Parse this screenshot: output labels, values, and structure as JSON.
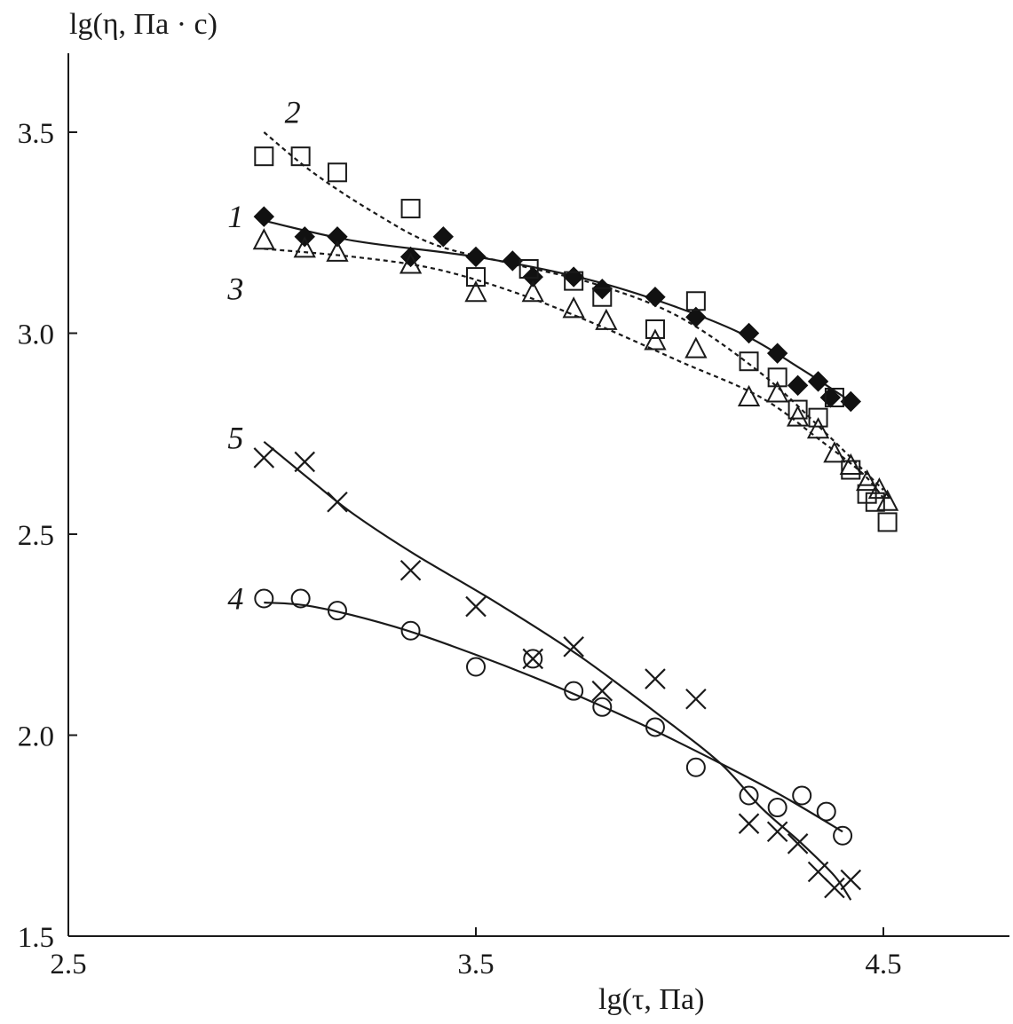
{
  "chart_data": {
    "type": "scatter",
    "title": "",
    "xlabel": "lg(τ, Па)",
    "ylabel": "lg(η, Па · с)",
    "xlim": [
      2.5,
      4.8
    ],
    "ylim": [
      1.5,
      3.7
    ],
    "xticks": [
      2.5,
      3.5,
      4.5
    ],
    "xtick_labels": [
      "2.5",
      "3.5",
      "4.5"
    ],
    "yticks": [
      1.5,
      2.0,
      2.5,
      3.0,
      3.5
    ],
    "ytick_labels": [
      "1.5",
      "2.0",
      "2.5",
      "3.0",
      "3.5"
    ],
    "grid": false,
    "legend": "none",
    "series": [
      {
        "label": "1",
        "marker": "filled-diamond",
        "line": "solid",
        "label_pos": [
          2.93,
          3.29
        ],
        "points": [
          [
            2.98,
            3.29
          ],
          [
            3.08,
            3.24
          ],
          [
            3.16,
            3.24
          ],
          [
            3.34,
            3.19
          ],
          [
            3.42,
            3.24
          ],
          [
            3.5,
            3.19
          ],
          [
            3.59,
            3.18
          ],
          [
            3.64,
            3.14
          ],
          [
            3.74,
            3.14
          ],
          [
            3.81,
            3.11
          ],
          [
            3.94,
            3.09
          ],
          [
            4.04,
            3.04
          ],
          [
            4.17,
            3.0
          ],
          [
            4.24,
            2.95
          ],
          [
            4.29,
            2.87
          ],
          [
            4.34,
            2.88
          ],
          [
            4.37,
            2.84
          ],
          [
            4.42,
            2.83
          ]
        ],
        "fit": [
          [
            2.98,
            3.28
          ],
          [
            3.2,
            3.23
          ],
          [
            3.5,
            3.19
          ],
          [
            3.75,
            3.14
          ],
          [
            3.95,
            3.08
          ],
          [
            4.15,
            3.0
          ],
          [
            4.3,
            2.91
          ],
          [
            4.42,
            2.83
          ]
        ]
      },
      {
        "label": "2",
        "marker": "open-square",
        "line": "dashed",
        "label_pos": [
          3.07,
          3.55
        ],
        "points": [
          [
            2.98,
            3.44
          ],
          [
            3.07,
            3.44
          ],
          [
            3.16,
            3.4
          ],
          [
            3.34,
            3.31
          ],
          [
            3.5,
            3.14
          ],
          [
            3.63,
            3.16
          ],
          [
            3.74,
            3.13
          ],
          [
            3.81,
            3.09
          ],
          [
            3.94,
            3.01
          ],
          [
            4.04,
            3.08
          ],
          [
            4.17,
            2.93
          ],
          [
            4.24,
            2.89
          ],
          [
            4.29,
            2.81
          ],
          [
            4.34,
            2.79
          ],
          [
            4.38,
            2.84
          ],
          [
            4.42,
            2.66
          ],
          [
            4.46,
            2.6
          ],
          [
            4.48,
            2.58
          ],
          [
            4.51,
            2.53
          ]
        ],
        "fit": [
          [
            2.98,
            3.5
          ],
          [
            3.1,
            3.4
          ],
          [
            3.25,
            3.3
          ],
          [
            3.4,
            3.22
          ],
          [
            3.6,
            3.17
          ],
          [
            3.8,
            3.12
          ],
          [
            4.0,
            3.04
          ],
          [
            4.2,
            2.9
          ],
          [
            4.35,
            2.76
          ],
          [
            4.45,
            2.66
          ],
          [
            4.5,
            2.61
          ]
        ]
      },
      {
        "label": "3",
        "marker": "open-triangle",
        "line": "dashed",
        "label_pos": [
          2.93,
          3.11
        ],
        "points": [
          [
            2.98,
            3.23
          ],
          [
            3.08,
            3.21
          ],
          [
            3.16,
            3.2
          ],
          [
            3.34,
            3.17
          ],
          [
            3.5,
            3.1
          ],
          [
            3.64,
            3.1
          ],
          [
            3.74,
            3.06
          ],
          [
            3.82,
            3.03
          ],
          [
            3.94,
            2.98
          ],
          [
            4.04,
            2.96
          ],
          [
            4.17,
            2.84
          ],
          [
            4.24,
            2.85
          ],
          [
            4.29,
            2.79
          ],
          [
            4.34,
            2.76
          ],
          [
            4.38,
            2.7
          ],
          [
            4.42,
            2.67
          ],
          [
            4.46,
            2.63
          ],
          [
            4.49,
            2.61
          ],
          [
            4.51,
            2.58
          ]
        ],
        "fit": [
          [
            2.98,
            3.21
          ],
          [
            3.2,
            3.19
          ],
          [
            3.4,
            3.16
          ],
          [
            3.6,
            3.1
          ],
          [
            3.8,
            3.02
          ],
          [
            4.0,
            2.93
          ],
          [
            4.2,
            2.84
          ],
          [
            4.35,
            2.73
          ],
          [
            4.45,
            2.65
          ],
          [
            4.5,
            2.59
          ]
        ]
      },
      {
        "label": "4",
        "marker": "open-circle",
        "line": "solid",
        "label_pos": [
          2.93,
          2.34
        ],
        "points": [
          [
            2.98,
            2.34
          ],
          [
            3.07,
            2.34
          ],
          [
            3.16,
            2.31
          ],
          [
            3.34,
            2.26
          ],
          [
            3.5,
            2.17
          ],
          [
            3.64,
            2.19
          ],
          [
            3.74,
            2.11
          ],
          [
            3.81,
            2.07
          ],
          [
            3.94,
            2.02
          ],
          [
            4.04,
            1.92
          ],
          [
            4.17,
            1.85
          ],
          [
            4.24,
            1.82
          ],
          [
            4.3,
            1.85
          ],
          [
            4.36,
            1.81
          ],
          [
            4.4,
            1.75
          ]
        ],
        "fit": [
          [
            2.98,
            2.33
          ],
          [
            3.1,
            2.32
          ],
          [
            3.3,
            2.27
          ],
          [
            3.5,
            2.2
          ],
          [
            3.7,
            2.12
          ],
          [
            3.9,
            2.03
          ],
          [
            4.1,
            1.93
          ],
          [
            4.25,
            1.85
          ],
          [
            4.4,
            1.76
          ]
        ]
      },
      {
        "label": "5",
        "marker": "cross",
        "line": "solid",
        "label_pos": [
          2.93,
          2.74
        ],
        "points": [
          [
            2.98,
            2.69
          ],
          [
            3.08,
            2.68
          ],
          [
            3.16,
            2.58
          ],
          [
            3.34,
            2.41
          ],
          [
            3.5,
            2.32
          ],
          [
            3.64,
            2.19
          ],
          [
            3.74,
            2.22
          ],
          [
            3.81,
            2.11
          ],
          [
            3.94,
            2.14
          ],
          [
            4.04,
            2.09
          ],
          [
            4.17,
            1.78
          ],
          [
            4.24,
            1.76
          ],
          [
            4.29,
            1.73
          ],
          [
            4.34,
            1.66
          ],
          [
            4.38,
            1.62
          ],
          [
            4.42,
            1.64
          ]
        ],
        "fit": [
          [
            2.98,
            2.73
          ],
          [
            3.1,
            2.63
          ],
          [
            3.2,
            2.55
          ],
          [
            3.35,
            2.45
          ],
          [
            3.55,
            2.33
          ],
          [
            3.75,
            2.2
          ],
          [
            3.95,
            2.05
          ],
          [
            4.1,
            1.93
          ],
          [
            4.2,
            1.82
          ],
          [
            4.3,
            1.73
          ],
          [
            4.38,
            1.65
          ],
          [
            4.42,
            1.59
          ]
        ]
      }
    ]
  }
}
